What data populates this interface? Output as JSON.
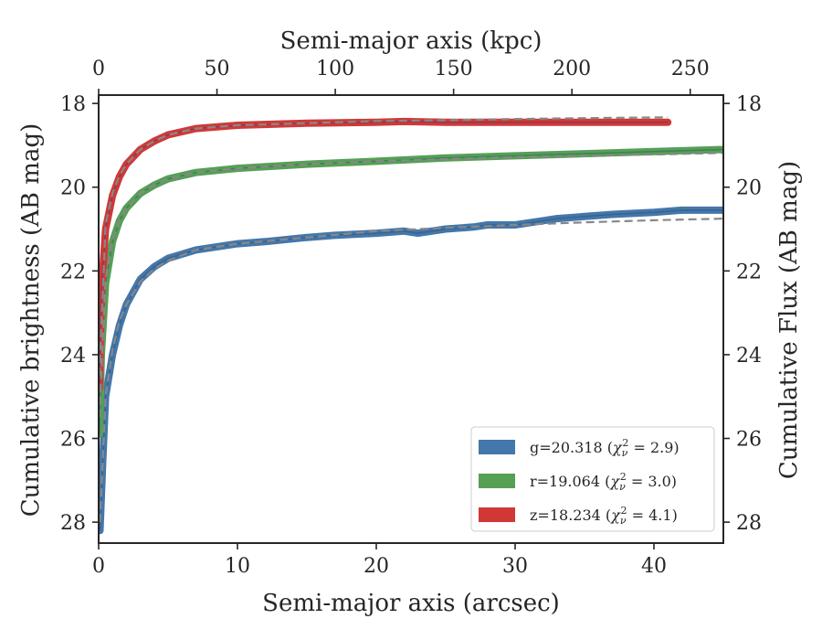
{
  "chart_data": {
    "type": "line",
    "xlabel": "Semi-major axis (arcsec)",
    "ylabel": "Cumulative brightness (AB mag)",
    "ylabel_right": "Cumulative Flux (AB mag)",
    "xlabel_top": "Semi-major axis (kpc)",
    "xlim": [
      0,
      45
    ],
    "ylim": [
      28.5,
      17.8
    ],
    "xlim_top": [
      0,
      264
    ],
    "xticks": [
      0,
      10,
      20,
      30,
      40
    ],
    "xticks_top": [
      0,
      50,
      100,
      150,
      200,
      250
    ],
    "yticks": [
      18,
      20,
      22,
      24,
      26,
      28
    ],
    "y_inverted": true,
    "grid": false,
    "legend_position": "lower-right",
    "series": [
      {
        "name": "g=20.318 (χν² = 2.9)",
        "color": "#4477aa",
        "x": [
          0.1,
          0.3,
          0.5,
          1,
          1.5,
          2,
          3,
          4,
          5,
          7,
          10,
          12,
          15,
          17,
          20,
          22,
          23,
          25,
          27,
          28,
          30,
          31,
          32,
          33,
          35,
          37,
          40,
          42,
          45
        ],
        "y": [
          28.2,
          26.5,
          25.0,
          24.0,
          23.3,
          22.8,
          22.2,
          21.9,
          21.7,
          21.5,
          21.35,
          21.3,
          21.2,
          21.15,
          21.1,
          21.05,
          21.1,
          21.0,
          20.95,
          20.9,
          20.9,
          20.85,
          20.8,
          20.75,
          20.7,
          20.65,
          20.6,
          20.55,
          20.55
        ]
      },
      {
        "name": "r=19.064 (χν² = 3.0)",
        "color": "#55a055",
        "x": [
          0.05,
          0.2,
          0.5,
          1,
          1.5,
          2,
          3,
          4,
          5,
          7,
          10,
          15,
          20,
          25,
          30,
          35,
          40,
          45
        ],
        "y": [
          25.9,
          24.0,
          22.3,
          21.3,
          20.8,
          20.5,
          20.15,
          19.95,
          19.8,
          19.65,
          19.55,
          19.45,
          19.38,
          19.3,
          19.25,
          19.2,
          19.15,
          19.1
        ]
      },
      {
        "name": "z=18.234 (χν² = 4.1)",
        "color": "#d03838",
        "x": [
          0.05,
          0.2,
          0.5,
          1,
          1.5,
          2,
          3,
          4,
          5,
          7,
          10,
          15,
          20,
          22,
          25,
          30,
          35,
          38,
          40,
          41
        ],
        "y": [
          24.8,
          22.5,
          21.0,
          20.2,
          19.75,
          19.45,
          19.1,
          18.9,
          18.75,
          18.6,
          18.52,
          18.47,
          18.45,
          18.43,
          18.45,
          18.45,
          18.45,
          18.45,
          18.45,
          18.45
        ]
      }
    ],
    "model_fits": [
      {
        "color": "#888888",
        "style": "dashed",
        "x": [
          0.1,
          0.5,
          1,
          1.5,
          2,
          3,
          4,
          5,
          7,
          10,
          15,
          20,
          25,
          30,
          35,
          40,
          45
        ],
        "y": [
          28.0,
          25.0,
          23.9,
          23.2,
          22.8,
          22.25,
          21.95,
          21.75,
          21.5,
          21.35,
          21.2,
          21.05,
          20.97,
          20.9,
          20.84,
          20.79,
          20.75
        ]
      },
      {
        "color": "#888888",
        "style": "dashed",
        "x": [
          0.05,
          0.5,
          1,
          1.5,
          2,
          3,
          4,
          5,
          7,
          10,
          15,
          20,
          25,
          30,
          35,
          40,
          45
        ],
        "y": [
          25.5,
          22.2,
          21.25,
          20.8,
          20.5,
          20.15,
          19.95,
          19.8,
          19.65,
          19.55,
          19.45,
          19.38,
          19.33,
          19.28,
          19.25,
          19.22,
          19.18
        ]
      },
      {
        "color": "#888888",
        "style": "dashed",
        "x": [
          0.05,
          0.5,
          1,
          1.5,
          2,
          3,
          4,
          5,
          7,
          10,
          15,
          20,
          25,
          30,
          35,
          41
        ],
        "y": [
          24.5,
          20.9,
          20.15,
          19.72,
          19.45,
          19.1,
          18.9,
          18.75,
          18.6,
          18.52,
          18.47,
          18.42,
          18.4,
          18.37,
          18.35,
          18.33
        ]
      }
    ],
    "legend": [
      {
        "label": "g=20.318 (",
        "math": "χ",
        "sub": "ν",
        "sup": "2",
        "tail": " = 2.9)",
        "color": "#4477aa"
      },
      {
        "label": "r=19.064 (",
        "math": "χ",
        "sub": "ν",
        "sup": "2",
        "tail": " = 3.0)",
        "color": "#55a055"
      },
      {
        "label": "z=18.234 (",
        "math": "χ",
        "sub": "ν",
        "sup": "2",
        "tail": " = 4.1)",
        "color": "#d03838"
      }
    ]
  }
}
